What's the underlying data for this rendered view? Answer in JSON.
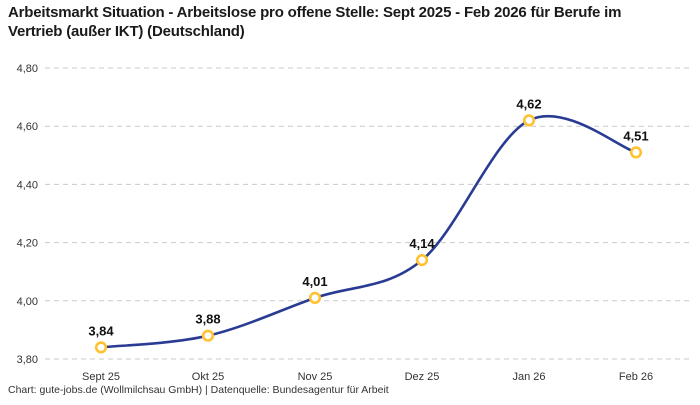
{
  "header": {
    "title": "Arbeitsmarkt Situation - Arbeitslose pro offene Stelle: Sept 2025 - Feb 2026 für Berufe im Vertrieb (außer IKT) (Deutschland)"
  },
  "footer": {
    "credit": "Chart: gute-jobs.de (Wollmilchsau GmbH) | Datenquelle: Bundesagentur für Arbeit"
  },
  "chart_data": {
    "type": "line",
    "title": "Arbeitsmarkt Situation - Arbeitslose pro offene Stelle: Sept 2025 - Feb 2026 für Berufe im Vertrieb (außer IKT) (Deutschland)",
    "categories": [
      "Sept 25",
      "Okt 25",
      "Nov 25",
      "Dez 25",
      "Jan 26",
      "Feb 26"
    ],
    "values": [
      3.84,
      3.88,
      4.01,
      4.14,
      4.62,
      4.51
    ],
    "point_labels": [
      "3,84",
      "3,88",
      "4,01",
      "4,14",
      "4,62",
      "4,51"
    ],
    "y_tick_values": [
      3.8,
      4.0,
      4.2,
      4.4,
      4.6,
      4.8
    ],
    "y_tick_labels": [
      "3,80",
      "4,00",
      "4,20",
      "4,40",
      "4,60",
      "4,80"
    ],
    "ylim": [
      3.8,
      4.8
    ],
    "xlabel": "",
    "ylabel": "",
    "grid": "horizontal-dashed",
    "legend": "none",
    "line_color": "#2a3b94",
    "marker_ring_color": "#ffc230",
    "marker_fill_color": "#ffffff",
    "grid_color": "#c9c9c9",
    "axis_label_color": "#333333",
    "point_label_color": "#111111"
  }
}
